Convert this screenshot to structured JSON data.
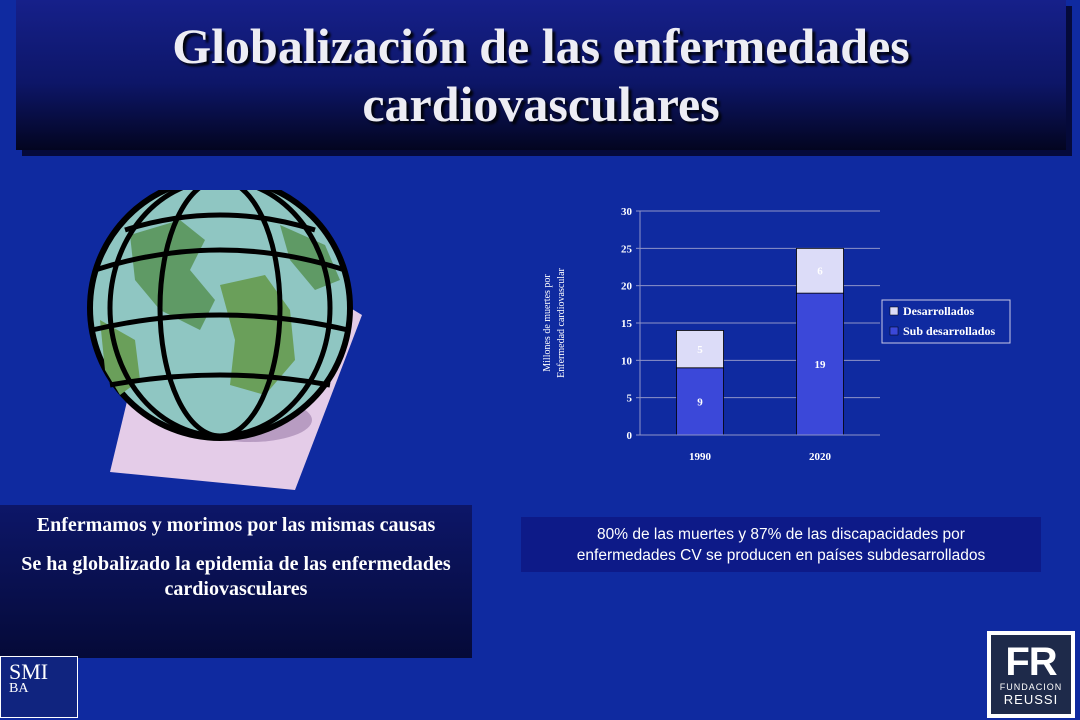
{
  "slide": {
    "title_line1": "Globalización de las enfermedades",
    "title_line2": "cardiovasculares",
    "text_box": {
      "p1": "Enfermamos y morimos por las mismas causas",
      "p2": "Se ha globalizado la epidemia de las enfermedades cardiovasculares"
    },
    "stat_box": {
      "line1": "80% de las muertes y 87% de las discapacidades por",
      "line2": "enfermedades CV se producen en países subdesarrollados"
    },
    "logos": {
      "smi_line1": "SMI",
      "smi_line2": "BA",
      "fr_big": "FR",
      "fr_small1": "FUNDACION",
      "fr_small2": "REUSSI"
    },
    "colors": {
      "background": "#0f2aa0",
      "title_text": "#ededf4"
    }
  },
  "chart_data": {
    "type": "bar",
    "stacked": true,
    "categories": [
      "1990",
      "2020"
    ],
    "series": [
      {
        "name": "Sub desarrollados",
        "values": [
          9,
          19
        ],
        "color": "#3b48d9"
      },
      {
        "name": "Desarrollados",
        "values": [
          5,
          6
        ],
        "color": "#dcdcf8"
      }
    ],
    "ylabel_line1": "Millones de muertes por",
    "ylabel_line2": "Enfermedad cardiovascular",
    "ylim": [
      0,
      30
    ],
    "yticks": [
      0,
      5,
      10,
      15,
      20,
      25,
      30
    ],
    "grid": true,
    "legend_position": "right"
  }
}
